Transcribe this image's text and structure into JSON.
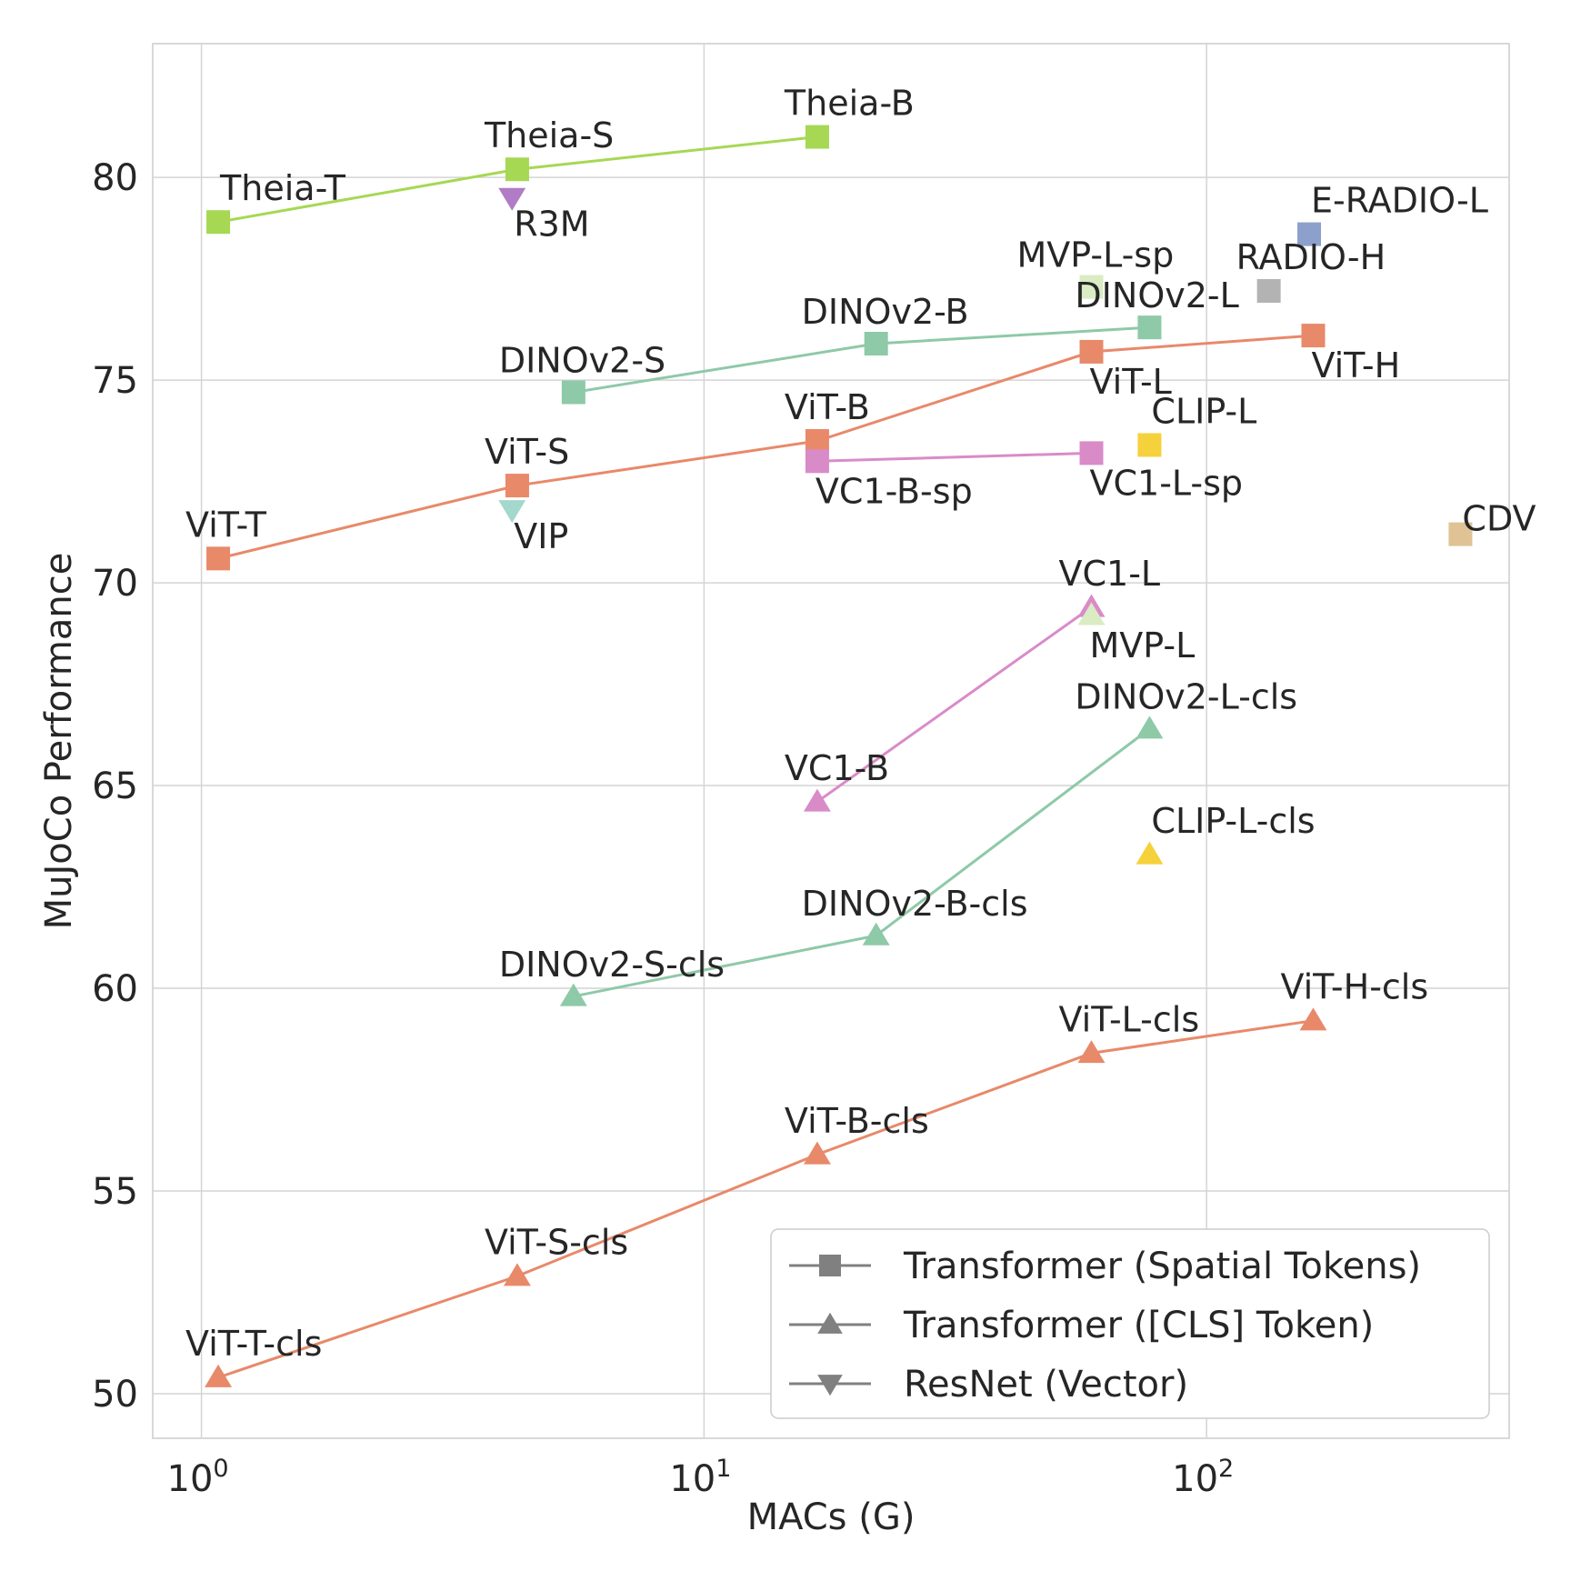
{
  "chart_data": {
    "type": "scatter",
    "title": "",
    "xlabel": "MACs (G)",
    "ylabel": "MuJoCo Performance",
    "xscale": "log",
    "xlim": [
      0.8,
      400
    ],
    "ylim": [
      48.9,
      83.3
    ],
    "grid": true,
    "x_ticks": [
      {
        "value": 1,
        "base": "10",
        "exp": "0"
      },
      {
        "value": 10,
        "base": "10",
        "exp": "1"
      },
      {
        "value": 100,
        "base": "10",
        "exp": "2"
      }
    ],
    "y_ticks": [
      50,
      55,
      60,
      65,
      70,
      75,
      80
    ],
    "legend": {
      "position": "bottom-right",
      "entries": [
        {
          "label": "Transformer (Spatial Tokens)",
          "marker": "square"
        },
        {
          "label": "Transformer ([CLS] Token)",
          "marker": "triangle-up"
        },
        {
          "label": "ResNet (Vector)",
          "marker": "triangle-down"
        }
      ]
    },
    "series": [
      {
        "name": "Theia",
        "color": "#a6d854",
        "line": true,
        "points": [
          {
            "label": "Theia-T",
            "x": 1.08,
            "y": 78.9,
            "marker": "square",
            "anchor": "above-right"
          },
          {
            "label": "Theia-S",
            "x": 4.25,
            "y": 80.2,
            "marker": "square",
            "anchor": "above"
          },
          {
            "label": "Theia-B",
            "x": 16.8,
            "y": 81.0,
            "marker": "square",
            "anchor": "above"
          }
        ]
      },
      {
        "name": "DINOv2",
        "color": "#8ec9a8",
        "line": true,
        "points": [
          {
            "label": "DINOv2-S",
            "x": 5.5,
            "y": 74.7,
            "marker": "square",
            "anchor": "above-left"
          },
          {
            "label": "DINOv2-B",
            "x": 22.0,
            "y": 75.9,
            "marker": "square",
            "anchor": "above-left"
          },
          {
            "label": "DINOv2-L",
            "x": 77.0,
            "y": 76.3,
            "marker": "square",
            "anchor": "above-left"
          }
        ]
      },
      {
        "name": "ViT",
        "color": "#e8896a",
        "line": true,
        "points": [
          {
            "label": "ViT-T",
            "x": 1.08,
            "y": 70.6,
            "marker": "square",
            "anchor": "above"
          },
          {
            "label": "ViT-S",
            "x": 4.25,
            "y": 72.4,
            "marker": "square",
            "anchor": "above"
          },
          {
            "label": "ViT-B",
            "x": 16.8,
            "y": 73.5,
            "marker": "square",
            "anchor": "above"
          },
          {
            "label": "ViT-L",
            "x": 59.0,
            "y": 75.7,
            "marker": "square",
            "anchor": "below"
          },
          {
            "label": "ViT-H",
            "x": 163.0,
            "y": 76.1,
            "marker": "square",
            "anchor": "below"
          }
        ]
      },
      {
        "name": "VC1-sp",
        "color": "#d98bc8",
        "line": true,
        "points": [
          {
            "label": "VC1-B-sp",
            "x": 16.8,
            "y": 73.0,
            "marker": "square",
            "anchor": "below"
          },
          {
            "label": "VC1-L-sp",
            "x": 59.0,
            "y": 73.2,
            "marker": "square",
            "anchor": "below"
          }
        ]
      },
      {
        "name": "MVP-L-sp",
        "color": "#d9ecc4",
        "line": false,
        "points": [
          {
            "label": "MVP-L-sp",
            "x": 59.0,
            "y": 77.3,
            "marker": "square",
            "anchor": "above-left"
          }
        ]
      },
      {
        "name": "RADIO-H",
        "color": "#b3b3b3",
        "line": false,
        "points": [
          {
            "label": "RADIO-H",
            "x": 133.0,
            "y": 77.2,
            "marker": "square",
            "anchor": "above"
          }
        ]
      },
      {
        "name": "E-RADIO-L",
        "color": "#8da0cb",
        "line": false,
        "points": [
          {
            "label": "E-RADIO-L",
            "x": 160.0,
            "y": 78.6,
            "marker": "square",
            "anchor": "above-right"
          }
        ]
      },
      {
        "name": "CLIP-L",
        "color": "#f5d13c",
        "line": false,
        "points": [
          {
            "label": "CLIP-L",
            "x": 77.0,
            "y": 73.4,
            "marker": "square",
            "anchor": "above-right"
          }
        ]
      },
      {
        "name": "CDV",
        "color": "#dfc394",
        "line": false,
        "points": [
          {
            "label": "CDV",
            "x": 320.0,
            "y": 71.2,
            "marker": "square",
            "anchor": "right-up"
          }
        ]
      },
      {
        "name": "R3M",
        "color": "#b07cc6",
        "line": false,
        "points": [
          {
            "label": "R3M",
            "x": 4.15,
            "y": 79.5,
            "marker": "triangle-down",
            "anchor": "below-right"
          }
        ]
      },
      {
        "name": "VIP",
        "color": "#a4d8cc",
        "line": false,
        "points": [
          {
            "label": "VIP",
            "x": 4.15,
            "y": 71.8,
            "marker": "triangle-down",
            "anchor": "below-right"
          }
        ]
      },
      {
        "name": "VC1-cls",
        "color": "#d98bc8",
        "line": true,
        "points": [
          {
            "label": "VC1-B",
            "x": 16.8,
            "y": 64.6,
            "marker": "triangle-up",
            "anchor": "above"
          },
          {
            "label": "VC1-L",
            "x": 59.0,
            "y": 69.4,
            "marker": "triangle-up",
            "anchor": "above"
          }
        ]
      },
      {
        "name": "MVP-L",
        "color": "#d9ecc4",
        "line": false,
        "points": [
          {
            "label": "MVP-L",
            "x": 59.0,
            "y": 69.2,
            "marker": "triangle-up",
            "anchor": "below"
          }
        ]
      },
      {
        "name": "DINOv2-cls",
        "color": "#8ec9a8",
        "line": true,
        "points": [
          {
            "label": "DINOv2-S-cls",
            "x": 5.5,
            "y": 59.8,
            "marker": "triangle-up",
            "anchor": "above-left"
          },
          {
            "label": "DINOv2-B-cls",
            "x": 22.0,
            "y": 61.3,
            "marker": "triangle-up",
            "anchor": "above-left"
          },
          {
            "label": "DINOv2-L-cls",
            "x": 77.0,
            "y": 66.4,
            "marker": "triangle-up",
            "anchor": "above-left"
          }
        ]
      },
      {
        "name": "CLIP-L-cls",
        "color": "#f5d13c",
        "line": false,
        "points": [
          {
            "label": "CLIP-L-cls",
            "x": 77.0,
            "y": 63.3,
            "marker": "triangle-up",
            "anchor": "above-right"
          }
        ]
      },
      {
        "name": "ViT-cls",
        "color": "#e8896a",
        "line": true,
        "points": [
          {
            "label": "ViT-T-cls",
            "x": 1.08,
            "y": 50.4,
            "marker": "triangle-up",
            "anchor": "above"
          },
          {
            "label": "ViT-S-cls",
            "x": 4.25,
            "y": 52.9,
            "marker": "triangle-up",
            "anchor": "above"
          },
          {
            "label": "ViT-B-cls",
            "x": 16.8,
            "y": 55.9,
            "marker": "triangle-up",
            "anchor": "above"
          },
          {
            "label": "ViT-L-cls",
            "x": 59.0,
            "y": 58.4,
            "marker": "triangle-up",
            "anchor": "above"
          },
          {
            "label": "ViT-H-cls",
            "x": 163.0,
            "y": 59.2,
            "marker": "triangle-up",
            "anchor": "above"
          }
        ]
      }
    ]
  }
}
